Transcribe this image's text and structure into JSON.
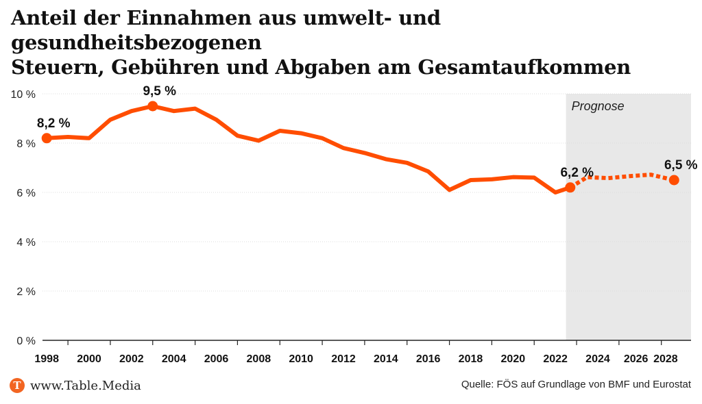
{
  "title_lines": [
    "Anteil der Einnahmen aus umwelt- und gesundheitsbezogenen",
    "Steuern, Gebühren und Abgaben am Gesamtaufkommen"
  ],
  "brand": {
    "logo_letter": "T",
    "text": "www.Table.Media"
  },
  "source": "Quelle: FÖS auf Grundlage von BMF und Eurostat",
  "colors": {
    "line": "#ff4d00",
    "forecast_bg": "#e8e8e8",
    "grid": "#dddddd"
  },
  "chart_data": {
    "type": "line",
    "forecast_label": "Prognose",
    "forecast_start": 2022.5,
    "ylim": [
      0,
      10
    ],
    "xlim": [
      1997.8,
      2028.4
    ],
    "y_ticks": [
      0,
      2,
      4,
      6,
      8,
      10
    ],
    "y_tick_labels": [
      "0 %",
      "2 %",
      "4 %",
      "6 %",
      "8 %",
      "10 %"
    ],
    "x_ticks": [
      1998,
      2000,
      2002,
      2004,
      2006,
      2008,
      2010,
      2012,
      2014,
      2016,
      2018,
      2020,
      2022,
      2024,
      2026,
      2028
    ],
    "x_tick_labels": [
      "1998",
      "2000",
      "2002",
      "2004",
      "2006",
      "2008",
      "2010",
      "2012",
      "2014",
      "2016",
      "2018",
      "2020",
      "2022",
      "2024",
      "2026",
      "2028"
    ],
    "x_tick_positions": [
      1998,
      2000,
      2002,
      2004,
      2006,
      2008,
      2010,
      2012,
      2014,
      2016,
      2018,
      2020,
      2022,
      2024,
      2025.8,
      2027.2
    ],
    "series": [
      {
        "style": "solid",
        "x": [
          1998,
          1999,
          2000,
          2001,
          2002,
          2003,
          2004,
          2005,
          2006,
          2007,
          2008,
          2009,
          2010,
          2011,
          2012,
          2013,
          2014,
          2015,
          2016,
          2017,
          2018,
          2019,
          2020,
          2021,
          2022,
          2022.7
        ],
        "y": [
          8.2,
          8.25,
          8.2,
          8.95,
          9.3,
          9.5,
          9.3,
          9.4,
          8.95,
          8.3,
          8.1,
          8.5,
          8.4,
          8.2,
          7.8,
          7.6,
          7.35,
          7.2,
          6.85,
          6.1,
          6.5,
          6.53,
          6.62,
          6.6,
          6.0,
          6.2
        ]
      },
      {
        "style": "dotted",
        "x": [
          2022.7,
          2023.5,
          2024.5,
          2025.5,
          2026.5,
          2027.6
        ],
        "y": [
          6.2,
          6.62,
          6.58,
          6.66,
          6.72,
          6.5
        ]
      }
    ],
    "annotations": [
      {
        "x": 1998,
        "y": 8.2,
        "label": "8,2 %"
      },
      {
        "x": 2003,
        "y": 9.5,
        "label": "9,5 %"
      },
      {
        "x": 2022.7,
        "y": 6.2,
        "label": "6,2 %"
      },
      {
        "x": 2027.6,
        "y": 6.5,
        "label": "6,5 %"
      }
    ]
  }
}
